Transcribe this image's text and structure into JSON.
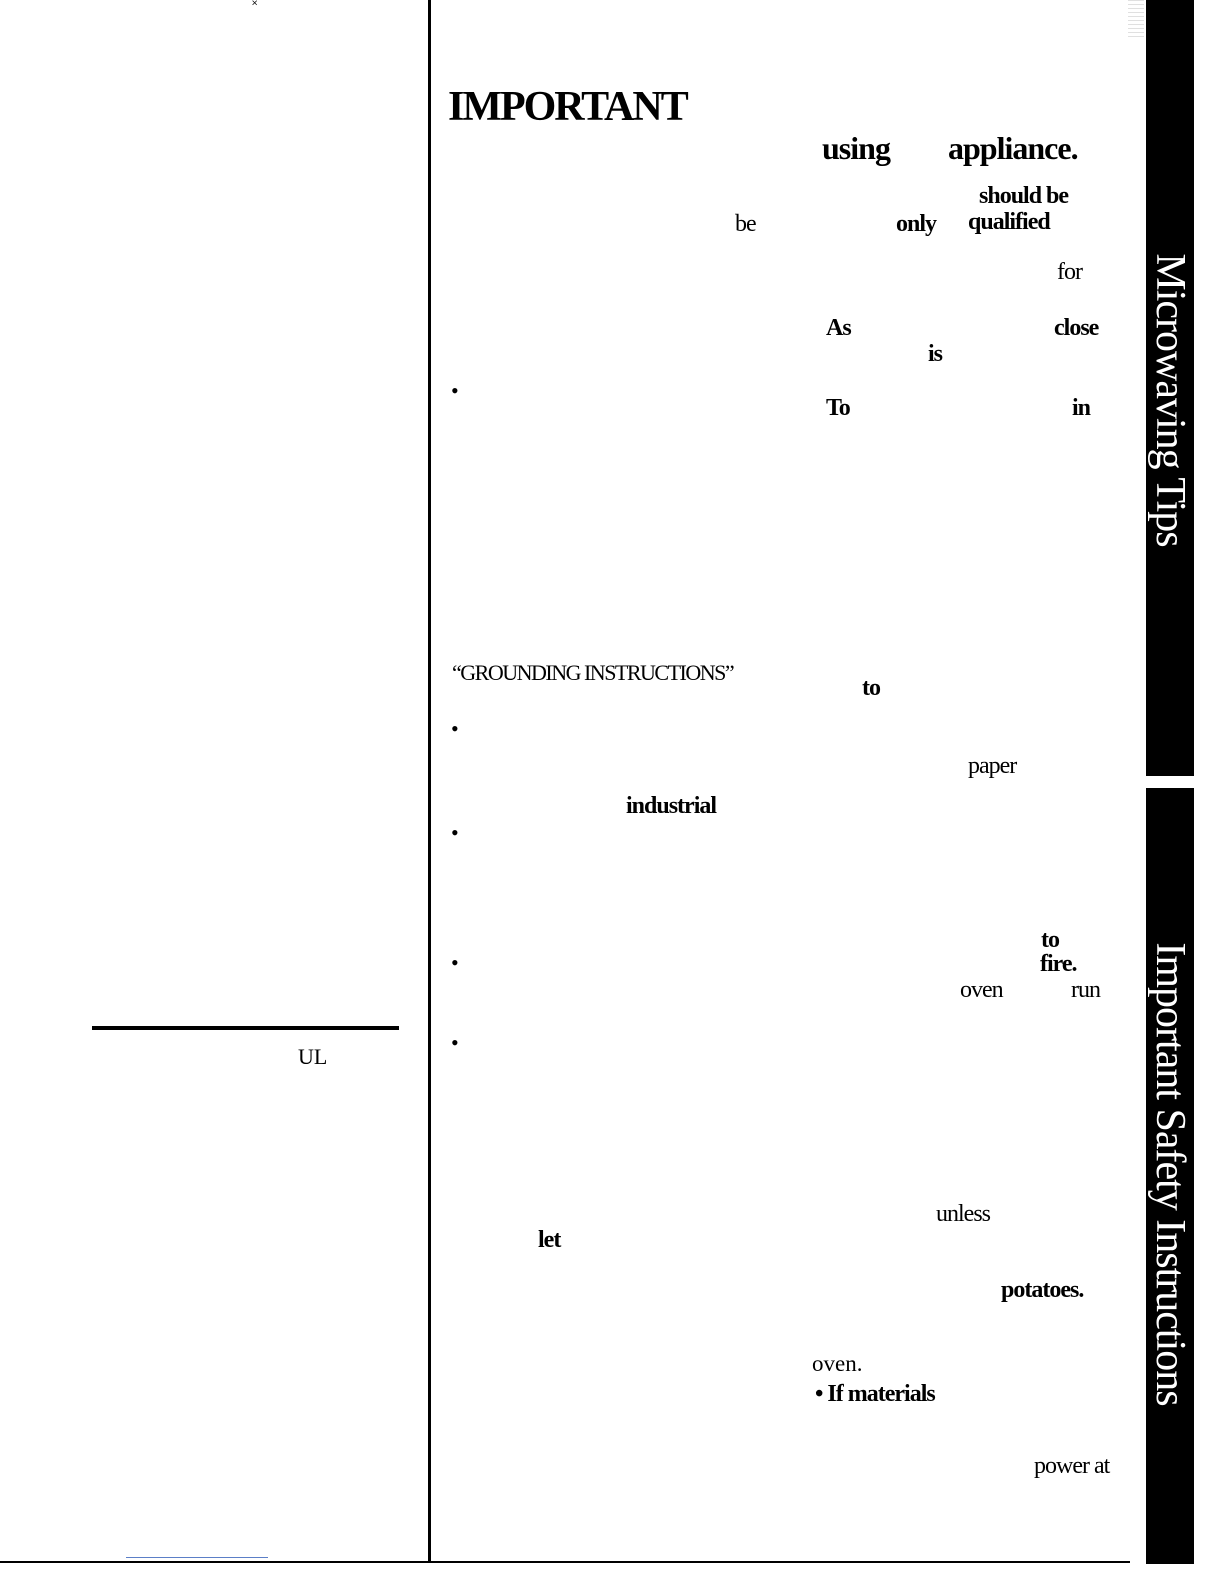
{
  "heading": {
    "title": "IMPORTANT",
    "using": "using",
    "appliance": "appliance."
  },
  "right_column_words": {
    "should_be": "should be",
    "be": "be",
    "only": "only",
    "qualified": "qualified",
    "for": "for",
    "as": "As",
    "close": "close",
    "is": "is",
    "to_cap": "To",
    "in": "in",
    "grounding": "“GROUNDING INSTRUCTIONS”",
    "to": "to",
    "paper": "paper",
    "industrial": "industrial",
    "to_2": "to",
    "fire": "fire.",
    "oven": "oven",
    "run": "run",
    "unless": "unless",
    "let": "let",
    "potatoes": "potatoes.",
    "oven_2": "oven.",
    "if_materials": "• If materials",
    "power_at": "power at"
  },
  "left_column": {
    "ul": "UL",
    "mark": "˟"
  },
  "bullet_char": "•",
  "tabs": {
    "microwaving_tips": "Microwaving Tips",
    "important_safety": "Important Safety Instructions"
  },
  "colors": {
    "tab_background": "#000000",
    "tab_text": "#ffffff",
    "link_rule": "#5b7fc7"
  }
}
